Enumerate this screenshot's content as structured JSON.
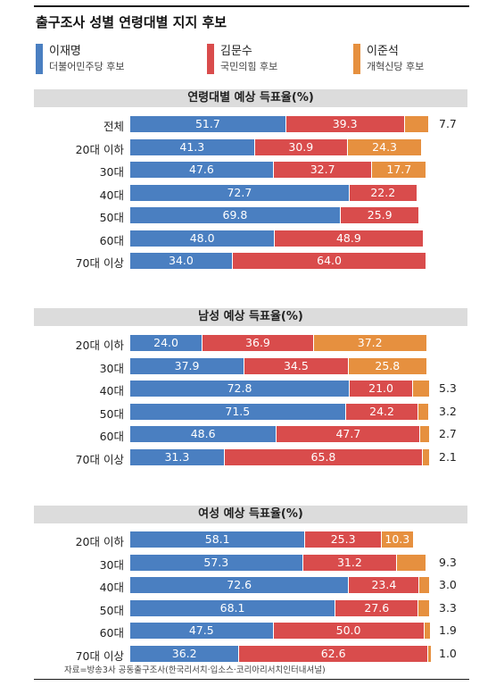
{
  "title": "출구조사 성별 연령대별 지지 후보",
  "legend": [
    {
      "name": "이재명",
      "party": "더불어민주당 후보",
      "color": "#4a7fc1"
    },
    {
      "name": "김문수",
      "party": "국민의힘 후보",
      "color": "#d94c4c"
    },
    {
      "name": "이준석",
      "party": "개혁신당 후보",
      "color": "#e6903f"
    }
  ],
  "source": "자료=방송3사 공동출구조사(한국리서치·입소스·코리아리서치인터내셔널)",
  "chart_data": [
    {
      "type": "bar",
      "title": "연령대별 예상 득표율(%)",
      "categories": [
        "전체",
        "20대 이하",
        "30대",
        "40대",
        "50대",
        "60대",
        "70대 이상"
      ],
      "series": [
        {
          "name": "이재명",
          "values": [
            51.7,
            41.3,
            47.6,
            72.7,
            69.8,
            48.0,
            34.0
          ]
        },
        {
          "name": "김문수",
          "values": [
            39.3,
            30.9,
            32.7,
            22.2,
            25.9,
            48.9,
            64.0
          ]
        },
        {
          "name": "이준석",
          "values": [
            7.7,
            24.3,
            17.7,
            null,
            null,
            null,
            null
          ]
        }
      ],
      "labels": [
        [
          "51.7",
          "39.3",
          "7.7"
        ],
        [
          "41.3",
          "30.9",
          "24.3"
        ],
        [
          "47.6",
          "32.7",
          "17.7"
        ],
        [
          "72.7",
          "22.2",
          ""
        ],
        [
          "69.8",
          "25.9",
          ""
        ],
        [
          "48.0",
          "48.9",
          ""
        ],
        [
          "34.0",
          "64.0",
          ""
        ]
      ]
    },
    {
      "type": "bar",
      "title": "남성 예상 득표율(%)",
      "categories": [
        "20대 이하",
        "30대",
        "40대",
        "50대",
        "60대",
        "70대 이상"
      ],
      "series": [
        {
          "name": "이재명",
          "values": [
            24.0,
            37.9,
            72.8,
            71.5,
            48.6,
            31.3
          ]
        },
        {
          "name": "김문수",
          "values": [
            36.9,
            34.5,
            21.0,
            24.2,
            47.7,
            65.8
          ]
        },
        {
          "name": "이준석",
          "values": [
            37.2,
            25.8,
            5.3,
            3.2,
            2.7,
            2.1
          ]
        }
      ],
      "labels": [
        [
          "24.0",
          "36.9",
          "37.2"
        ],
        [
          "37.9",
          "34.5",
          "25.8"
        ],
        [
          "72.8",
          "21.0",
          "5.3"
        ],
        [
          "71.5",
          "24.2",
          "3.2"
        ],
        [
          "48.6",
          "47.7",
          "2.7"
        ],
        [
          "31.3",
          "65.8",
          "2.1"
        ]
      ]
    },
    {
      "type": "bar",
      "title": "여성 예상 득표율(%)",
      "categories": [
        "20대 이하",
        "30대",
        "40대",
        "50대",
        "60대",
        "70대 이상"
      ],
      "series": [
        {
          "name": "이재명",
          "values": [
            58.1,
            57.3,
            72.6,
            68.1,
            47.5,
            36.2
          ]
        },
        {
          "name": "김문수",
          "values": [
            25.3,
            31.2,
            23.4,
            27.6,
            50.0,
            62.6
          ]
        },
        {
          "name": "이준석",
          "values": [
            10.3,
            9.3,
            3.0,
            3.3,
            1.9,
            1.0
          ]
        }
      ],
      "labels": [
        [
          "58.1",
          "25.3",
          "10.3"
        ],
        [
          "57.3",
          "31.2",
          "9.3"
        ],
        [
          "72.6",
          "23.4",
          "3.0"
        ],
        [
          "68.1",
          "27.6",
          "3.3"
        ],
        [
          "47.5",
          "50.0",
          "1.9"
        ],
        [
          "36.2",
          "62.6",
          "1.0"
        ]
      ]
    }
  ]
}
